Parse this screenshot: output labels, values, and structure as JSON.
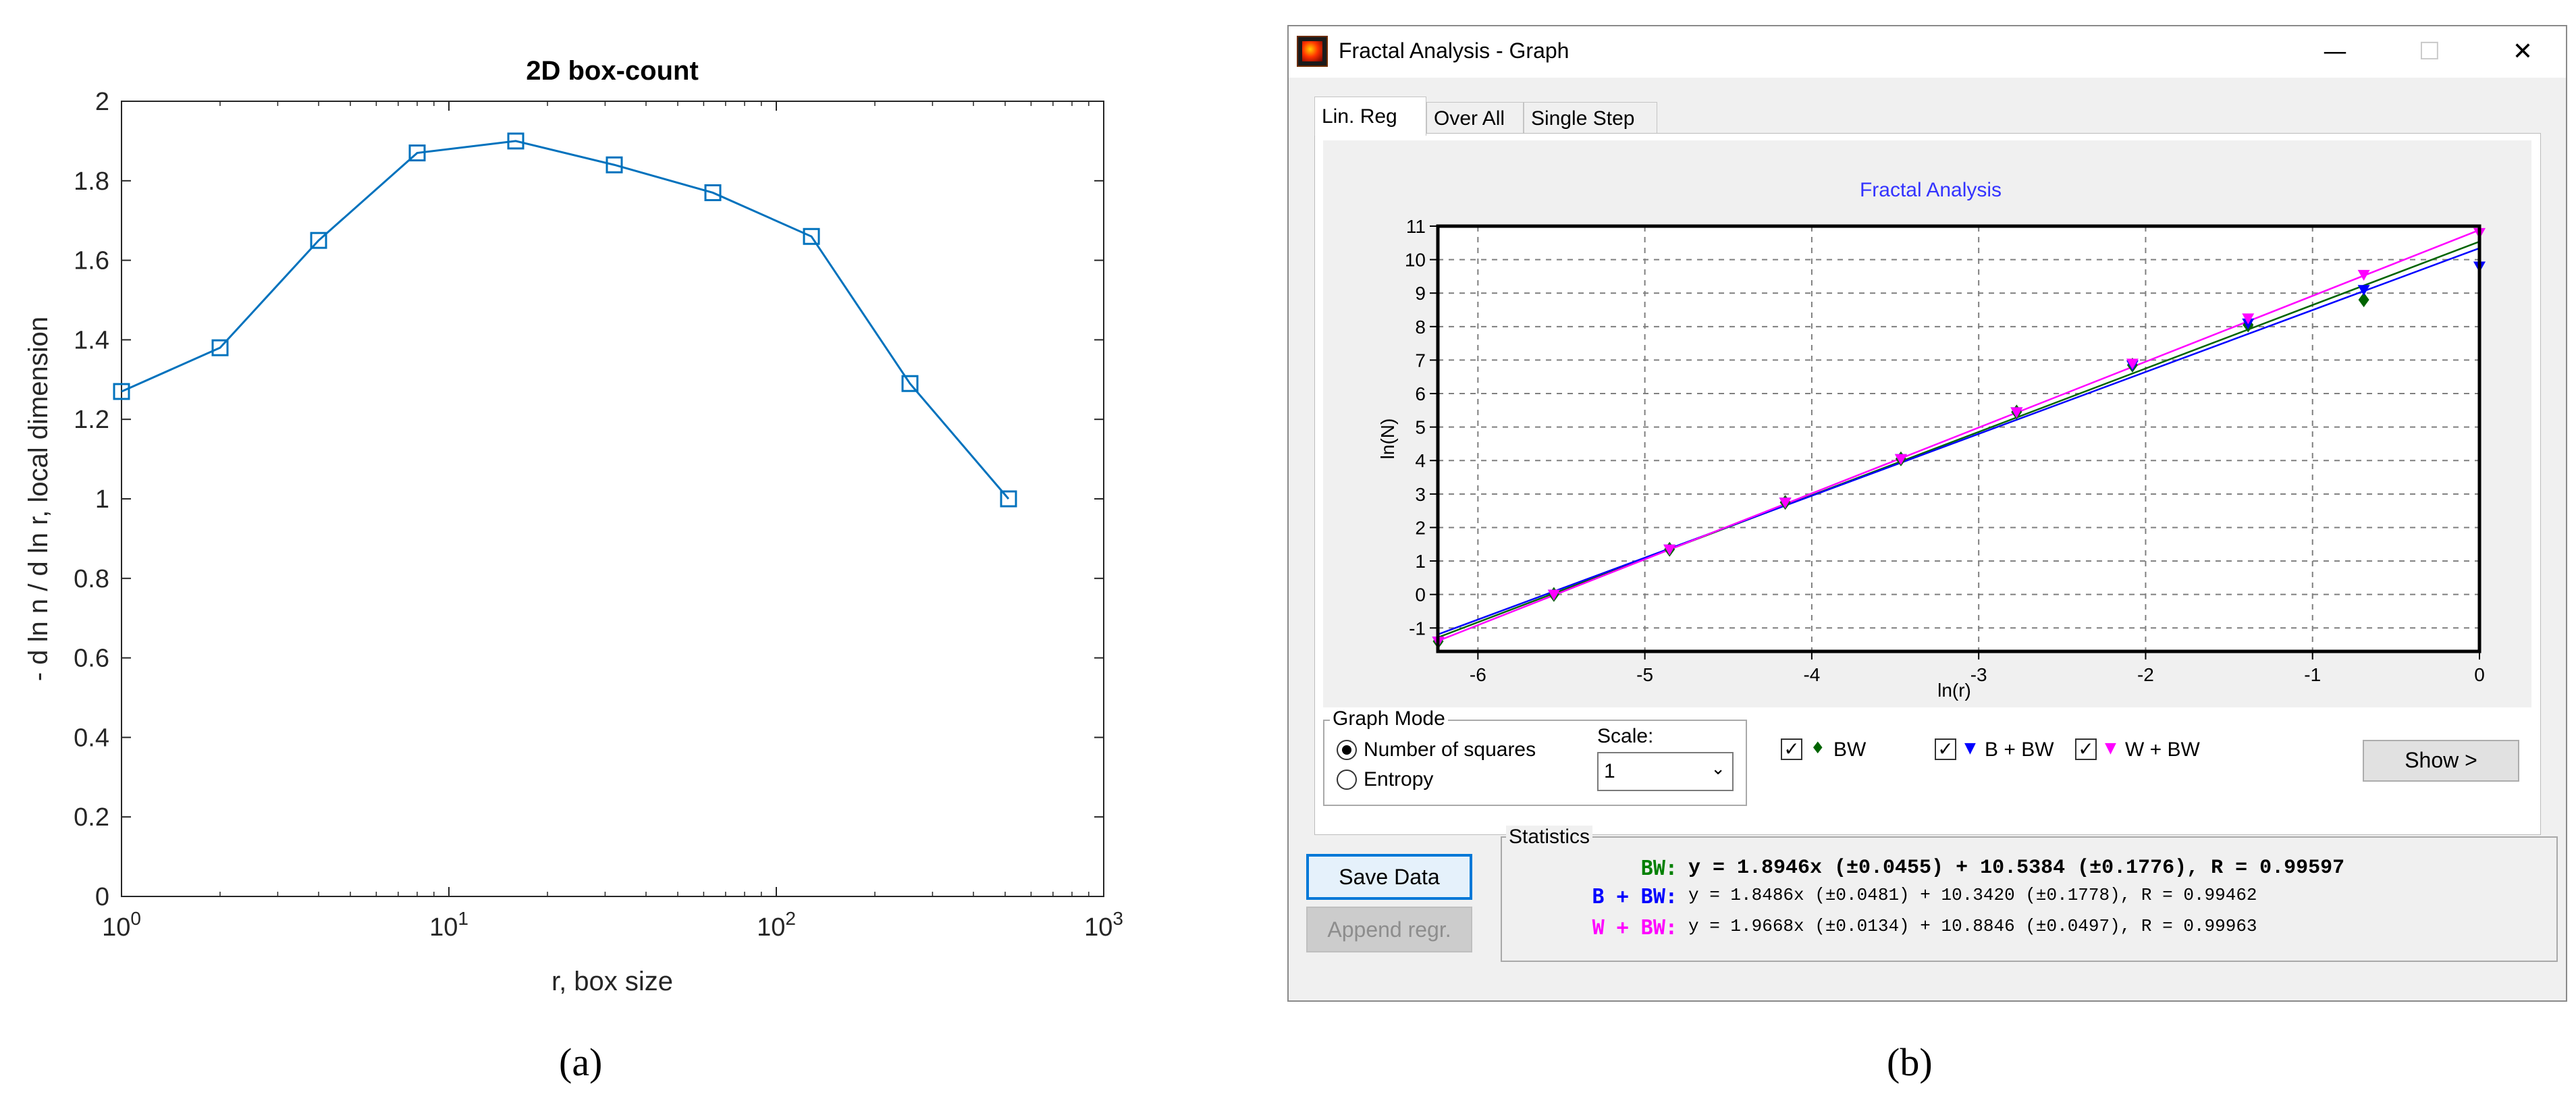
{
  "captions": {
    "left": "(a)",
    "right": "(b)"
  },
  "left_chart": {
    "title": "2D box-count",
    "xlabel": "r, box size",
    "ylabel": "- d ln n / d ln r, local dimension",
    "color": "#0072bd"
  },
  "window": {
    "title": "Fractal Analysis - Graph",
    "minimize_glyph": "—",
    "maximize_glyph": "☐",
    "close_glyph": "✕",
    "tabs": [
      "Lin. Reg",
      "Over All",
      "Single Step"
    ],
    "graph_mode": {
      "label": "Graph Mode",
      "options": [
        "Number of squares",
        "Entropy"
      ],
      "selected": "Number of squares"
    },
    "scale": {
      "label": "Scale:",
      "value": "1"
    },
    "series_toggles": [
      {
        "marker": "♦",
        "label": "BW",
        "checked": true,
        "color": "#006400"
      },
      {
        "marker": "▼",
        "label": "B + BW",
        "checked": true,
        "color": "#0000ff"
      },
      {
        "marker": "▼",
        "label": "W + BW",
        "checked": true,
        "color": "#ff00ff"
      }
    ],
    "checkmark": "✓",
    "show_button": "Show >",
    "save_button": "Save Data",
    "append_button": "Append regr.",
    "statistics": {
      "label": "Statistics",
      "rows": [
        {
          "name": "BW:",
          "color": "#008000",
          "text": "y = 1.8946x (±0.0455) + 10.5384 (±0.1776), R = 0.99597"
        },
        {
          "name": "B + BW:",
          "color": "#0000ff",
          "text": "y = 1.8486x (±0.0481) + 10.3420 (±0.1778), R = 0.99462"
        },
        {
          "name": "W + BW:",
          "color": "#ff00ff",
          "text": "y = 1.9668x (±0.0134) + 10.8846 (±0.0497), R = 0.99963"
        }
      ]
    },
    "plot": {
      "title": "Fractal Analysis",
      "title_color": "#3333ff",
      "xlabel": "ln(r)",
      "ylabel": "ln(N)"
    }
  },
  "chart_data": [
    {
      "type": "line",
      "title": "2D box-count",
      "xlabel": "r, box size",
      "ylabel": "- d ln n / d ln r, local dimension",
      "xscale": "log",
      "xlim": [
        1,
        1000
      ],
      "ylim": [
        0,
        2
      ],
      "xticks": [
        1,
        10,
        100,
        1000
      ],
      "xtick_labels": [
        {
          "base": "10",
          "exp": "0"
        },
        {
          "base": "10",
          "exp": "1"
        },
        {
          "base": "10",
          "exp": "2"
        },
        {
          "base": "10",
          "exp": "3"
        }
      ],
      "yticks": [
        0,
        0.2,
        0.4,
        0.6,
        0.8,
        1,
        1.2,
        1.4,
        1.6,
        1.8,
        2
      ],
      "ytick_labels": [
        "0",
        "0.2",
        "0.4",
        "0.6",
        "0.8",
        "1",
        "1.2",
        "1.4",
        "1.6",
        "1.8",
        "2"
      ],
      "grid": false,
      "marker": "square",
      "x": [
        1,
        2,
        4,
        8,
        16,
        32,
        64,
        128,
        256,
        512
      ],
      "y": [
        1.27,
        1.38,
        1.65,
        1.87,
        1.9,
        1.84,
        1.77,
        1.66,
        1.29,
        1.0
      ]
    },
    {
      "type": "scatter",
      "title": "Fractal Analysis",
      "xlabel": "ln(r)",
      "ylabel": "ln(N)",
      "xlim": [
        -6.24,
        0
      ],
      "ylim": [
        -1.7,
        11
      ],
      "xticks": [
        -6,
        -5,
        -4,
        -3,
        -2,
        -1,
        0
      ],
      "xtick_labels": [
        "-6",
        "-5",
        "-4",
        "-3",
        "-2",
        "-1",
        "0"
      ],
      "yticks": [
        -1,
        0,
        1,
        2,
        3,
        4,
        5,
        6,
        7,
        8,
        9,
        10,
        11
      ],
      "ytick_labels": [
        "-1",
        "0",
        "1",
        "2",
        "3",
        "4",
        "5",
        "6",
        "7",
        "8",
        "9",
        "10",
        "11"
      ],
      "grid": true,
      "series": [
        {
          "name": "BW",
          "color": "#006400",
          "marker": "diamond",
          "slope": 1.8946,
          "intercept": 10.5384,
          "x": [
            -6.238,
            -5.545,
            -4.852,
            -4.159,
            -3.466,
            -2.773,
            -2.079,
            -1.386,
            -0.693
          ],
          "y": [
            -1.4,
            0.0,
            1.35,
            2.75,
            4.05,
            5.45,
            6.85,
            8.05,
            8.8
          ]
        },
        {
          "name": "B + BW",
          "color": "#0000ff",
          "marker": "triangle-down",
          "slope": 1.8486,
          "intercept": 10.342,
          "x": [
            -6.238,
            -5.545,
            -4.852,
            -4.159,
            -3.466,
            -2.773,
            -2.079,
            -1.386,
            -0.693,
            0
          ],
          "y": [
            -1.4,
            0.0,
            1.35,
            2.75,
            4.05,
            5.45,
            6.85,
            8.1,
            9.1,
            9.8
          ]
        },
        {
          "name": "W + BW",
          "color": "#ff00ff",
          "marker": "triangle-down",
          "slope": 1.9668,
          "intercept": 10.8846,
          "x": [
            -6.238,
            -5.545,
            -4.852,
            -4.159,
            -3.466,
            -2.773,
            -2.079,
            -1.386,
            -0.693,
            0
          ],
          "y": [
            -1.4,
            0.0,
            1.35,
            2.75,
            4.05,
            5.45,
            6.9,
            8.25,
            9.55,
            10.8
          ]
        }
      ]
    }
  ]
}
